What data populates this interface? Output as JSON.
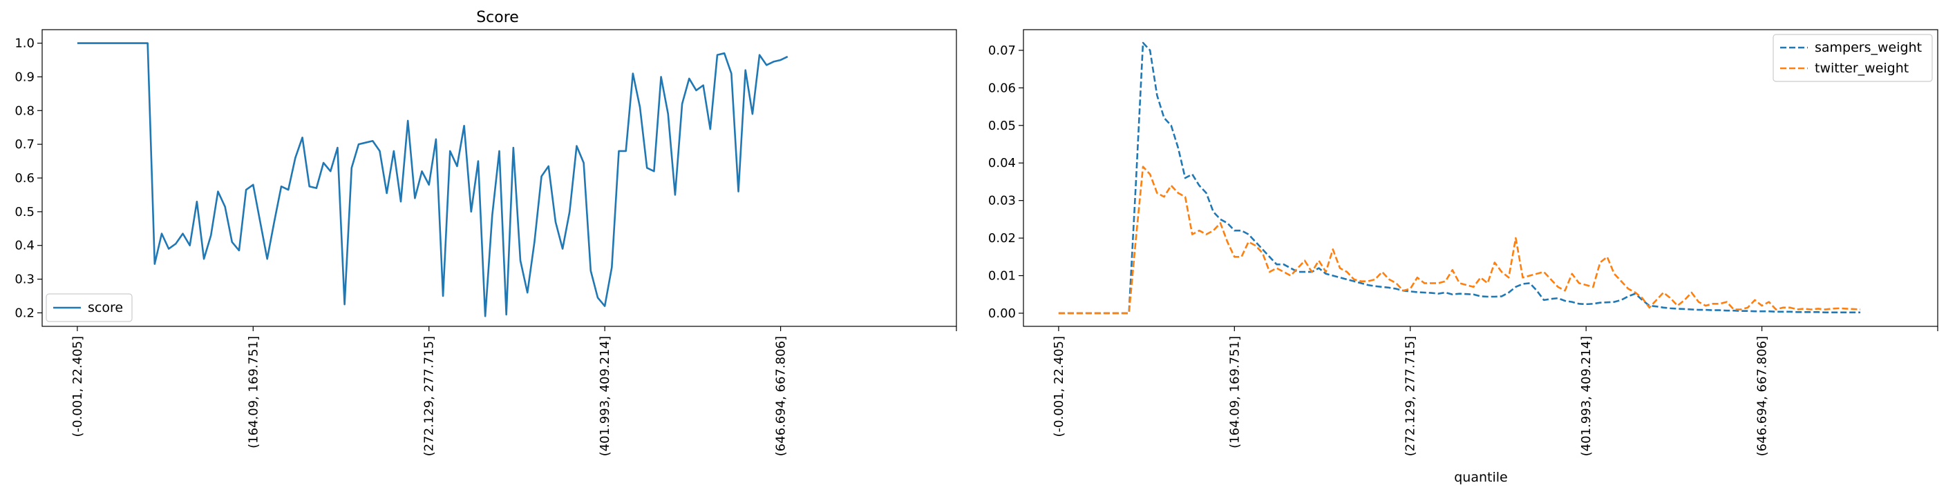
{
  "chart_data": [
    {
      "type": "line",
      "title": "Score",
      "xlabel": "",
      "ylabel": "",
      "xlim": [
        -5,
        125
      ],
      "ylim": [
        0.16,
        1.04
      ],
      "yticks": [
        0.2,
        0.3,
        0.4,
        0.5,
        0.6,
        0.7,
        0.8,
        0.9,
        1.0
      ],
      "ytick_labels": [
        "0.2",
        "0.3",
        "0.4",
        "0.5",
        "0.6",
        "0.7",
        "0.8",
        "0.9",
        "1.0"
      ],
      "xticks": [
        0,
        25,
        50,
        75,
        100,
        125
      ],
      "xtick_labels": [
        "(-0.001, 22.405]",
        "(164.09, 169.751]",
        "(272.129, 277.715]",
        "(401.993, 409.214]",
        "(646.694, 667.806]",
        ""
      ],
      "legend": {
        "position": "lower-left"
      },
      "series": [
        {
          "name": "score",
          "color": "#1f77b4",
          "dash": "solid",
          "values": [
            1.0,
            1.0,
            1.0,
            1.0,
            1.0,
            1.0,
            1.0,
            1.0,
            1.0,
            1.0,
            1.0,
            0.345,
            0.435,
            0.39,
            0.405,
            0.435,
            0.4,
            0.53,
            0.36,
            0.43,
            0.56,
            0.515,
            0.41,
            0.385,
            0.565,
            0.58,
            0.47,
            0.36,
            0.47,
            0.575,
            0.565,
            0.66,
            0.72,
            0.575,
            0.57,
            0.645,
            0.62,
            0.69,
            0.225,
            0.63,
            0.7,
            0.705,
            0.71,
            0.68,
            0.555,
            0.68,
            0.53,
            0.77,
            0.54,
            0.62,
            0.58,
            0.715,
            0.25,
            0.68,
            0.635,
            0.755,
            0.5,
            0.65,
            0.19,
            0.49,
            0.68,
            0.195,
            0.69,
            0.355,
            0.26,
            0.41,
            0.605,
            0.635,
            0.47,
            0.39,
            0.5,
            0.695,
            0.645,
            0.325,
            0.245,
            0.22,
            0.335,
            0.68,
            0.68,
            0.91,
            0.81,
            0.63,
            0.62,
            0.9,
            0.79,
            0.55,
            0.82,
            0.895,
            0.86,
            0.875,
            0.745,
            0.965,
            0.97,
            0.91,
            0.56,
            0.92,
            0.79,
            0.965,
            0.935,
            0.945,
            0.95,
            0.96
          ]
        }
      ]
    },
    {
      "type": "line",
      "title": "",
      "xlabel": "quantile",
      "ylabel": "",
      "xlim": [
        -5,
        125
      ],
      "ylim": [
        -0.0035,
        0.0755
      ],
      "yticks": [
        0.0,
        0.01,
        0.02,
        0.03,
        0.04,
        0.05,
        0.06,
        0.07
      ],
      "ytick_labels": [
        "0.00",
        "0.01",
        "0.02",
        "0.03",
        "0.04",
        "0.05",
        "0.06",
        "0.07"
      ],
      "xticks": [
        0,
        25,
        50,
        75,
        100,
        125
      ],
      "xtick_labels": [
        "(-0.001, 22.405]",
        "(164.09, 169.751]",
        "(272.129, 277.715]",
        "(401.993, 409.214]",
        "(646.694, 667.806]",
        ""
      ],
      "legend": {
        "position": "upper-right"
      },
      "series": [
        {
          "name": "sampers_weight",
          "color": "#1f77b4",
          "dash": "dashed",
          "values": [
            0,
            0,
            0,
            0,
            0,
            0,
            0,
            0,
            0,
            0,
            0,
            0.035,
            0.072,
            0.07,
            0.058,
            0.052,
            0.05,
            0.044,
            0.036,
            0.037,
            0.034,
            0.032,
            0.027,
            0.025,
            0.024,
            0.022,
            0.022,
            0.021,
            0.019,
            0.017,
            0.015,
            0.013,
            0.013,
            0.012,
            0.011,
            0.011,
            0.011,
            0.012,
            0.0105,
            0.01,
            0.0095,
            0.009,
            0.0085,
            0.008,
            0.0075,
            0.0072,
            0.007,
            0.0068,
            0.0065,
            0.006,
            0.0058,
            0.0056,
            0.0055,
            0.0054,
            0.0052,
            0.0055,
            0.005,
            0.0052,
            0.0051,
            0.005,
            0.0045,
            0.0044,
            0.0044,
            0.0045,
            0.0055,
            0.007,
            0.0078,
            0.008,
            0.006,
            0.0035,
            0.0038,
            0.004,
            0.0033,
            0.003,
            0.0025,
            0.0024,
            0.0025,
            0.0028,
            0.0029,
            0.003,
            0.0035,
            0.0045,
            0.0052,
            0.0035,
            0.002,
            0.0018,
            0.0015,
            0.0013,
            0.0012,
            0.0011,
            0.001,
            0.0009,
            0.0009,
            0.0008,
            0.0008,
            0.0007,
            0.0007,
            0.0006,
            0.0006,
            0.0005,
            0.0005,
            0.0005,
            0.0004,
            0.0004,
            0.0004,
            0.0003,
            0.0003,
            0.0003,
            0.0003,
            0.0002,
            0.0002,
            0.0002,
            0.0002,
            0.0002,
            0.0002
          ]
        },
        {
          "name": "twitter_weight",
          "color": "#ff7f0e",
          "dash": "dashed",
          "values": [
            0,
            0,
            0,
            0,
            0,
            0,
            0,
            0,
            0,
            0,
            0,
            0.02,
            0.039,
            0.037,
            0.032,
            0.031,
            0.034,
            0.032,
            0.031,
            0.021,
            0.022,
            0.021,
            0.022,
            0.024,
            0.019,
            0.015,
            0.015,
            0.019,
            0.018,
            0.016,
            0.011,
            0.012,
            0.011,
            0.01,
            0.012,
            0.014,
            0.011,
            0.014,
            0.011,
            0.017,
            0.012,
            0.011,
            0.009,
            0.0085,
            0.0085,
            0.009,
            0.011,
            0.009,
            0.008,
            0.006,
            0.0065,
            0.0095,
            0.008,
            0.008,
            0.008,
            0.0085,
            0.0115,
            0.008,
            0.0075,
            0.007,
            0.0095,
            0.008,
            0.0135,
            0.011,
            0.0095,
            0.02,
            0.0095,
            0.01,
            0.0105,
            0.011,
            0.009,
            0.007,
            0.006,
            0.0105,
            0.008,
            0.0075,
            0.007,
            0.0135,
            0.015,
            0.0105,
            0.0085,
            0.0065,
            0.0055,
            0.004,
            0.0015,
            0.0035,
            0.0055,
            0.004,
            0.002,
            0.0035,
            0.0055,
            0.003,
            0.002,
            0.0025,
            0.0025,
            0.003,
            0.001,
            0.001,
            0.0015,
            0.0035,
            0.002,
            0.003,
            0.001,
            0.0015,
            0.0015,
            0.001,
            0.0012,
            0.001,
            0.0012,
            0.001,
            0.0012,
            0.0013,
            0.0012,
            0.0011,
            0.001
          ]
        }
      ]
    }
  ]
}
